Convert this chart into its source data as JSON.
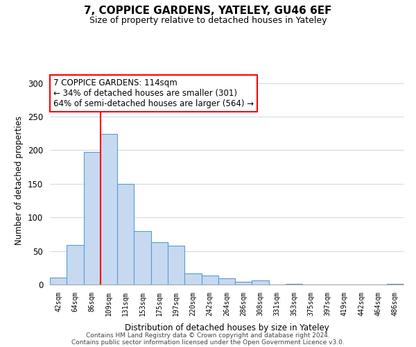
{
  "title": "7, COPPICE GARDENS, YATELEY, GU46 6EF",
  "subtitle": "Size of property relative to detached houses in Yateley",
  "xlabel": "Distribution of detached houses by size in Yateley",
  "ylabel": "Number of detached properties",
  "bar_labels": [
    "42sqm",
    "64sqm",
    "86sqm",
    "109sqm",
    "131sqm",
    "153sqm",
    "175sqm",
    "197sqm",
    "220sqm",
    "242sqm",
    "264sqm",
    "286sqm",
    "308sqm",
    "331sqm",
    "353sqm",
    "375sqm",
    "397sqm",
    "419sqm",
    "442sqm",
    "464sqm",
    "486sqm"
  ],
  "bar_values": [
    10,
    59,
    197,
    224,
    150,
    80,
    63,
    58,
    17,
    13,
    9,
    4,
    6,
    0,
    1,
    0,
    0,
    0,
    0,
    0,
    1
  ],
  "bar_color": "#c6d9f0",
  "bar_edge_color": "#5b9bd5",
  "vline_color": "red",
  "vline_x_index": 2.5,
  "ylim": [
    0,
    310
  ],
  "yticks": [
    0,
    50,
    100,
    150,
    200,
    250,
    300
  ],
  "annotation_title": "7 COPPICE GARDENS: 114sqm",
  "annotation_line1": "← 34% of detached houses are smaller (301)",
  "annotation_line2": "64% of semi-detached houses are larger (564) →",
  "annotation_box_color": "white",
  "annotation_box_edge": "red",
  "footer1": "Contains HM Land Registry data © Crown copyright and database right 2024.",
  "footer2": "Contains public sector information licensed under the Open Government Licence v3.0.",
  "bg_color": "white",
  "grid_color": "#d0dce8"
}
